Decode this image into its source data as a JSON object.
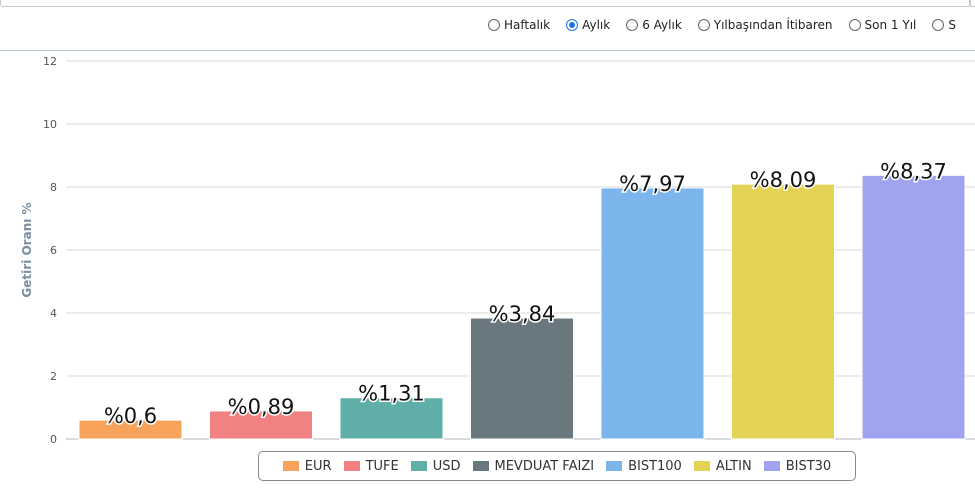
{
  "periods": [
    {
      "label": "Haftalık",
      "checked": false
    },
    {
      "label": "Aylık",
      "checked": true
    },
    {
      "label": "6 Aylık",
      "checked": false
    },
    {
      "label": "Yılbaşından İtibaren",
      "checked": false
    },
    {
      "label": "Son 1 Yıl",
      "checked": false
    },
    {
      "label": "S",
      "checked": false
    }
  ],
  "chart_data": {
    "type": "bar",
    "ylabel": "Getiri Oranı %",
    "ylim": [
      0,
      12
    ],
    "yticks": [
      0,
      2,
      4,
      6,
      8,
      10,
      12
    ],
    "grid": true,
    "legend_position": "bottom",
    "categories": [
      "EUR",
      "TUFE",
      "USD",
      "MEVDUAT FAIZI",
      "BIST100",
      "ALTIN",
      "BIST30"
    ],
    "values": [
      0.6,
      0.89,
      1.31,
      3.84,
      7.97,
      8.09,
      8.37
    ],
    "data_labels": [
      "%0,6",
      "%0,89",
      "%1,31",
      "%3,84",
      "%7,97",
      "%8,09",
      "%8,37"
    ],
    "colors": [
      "#f7a35c",
      "#f28282",
      "#5faea8",
      "#69787e",
      "#7cb5ec",
      "#e4d354",
      "#a0a4ef"
    ]
  }
}
